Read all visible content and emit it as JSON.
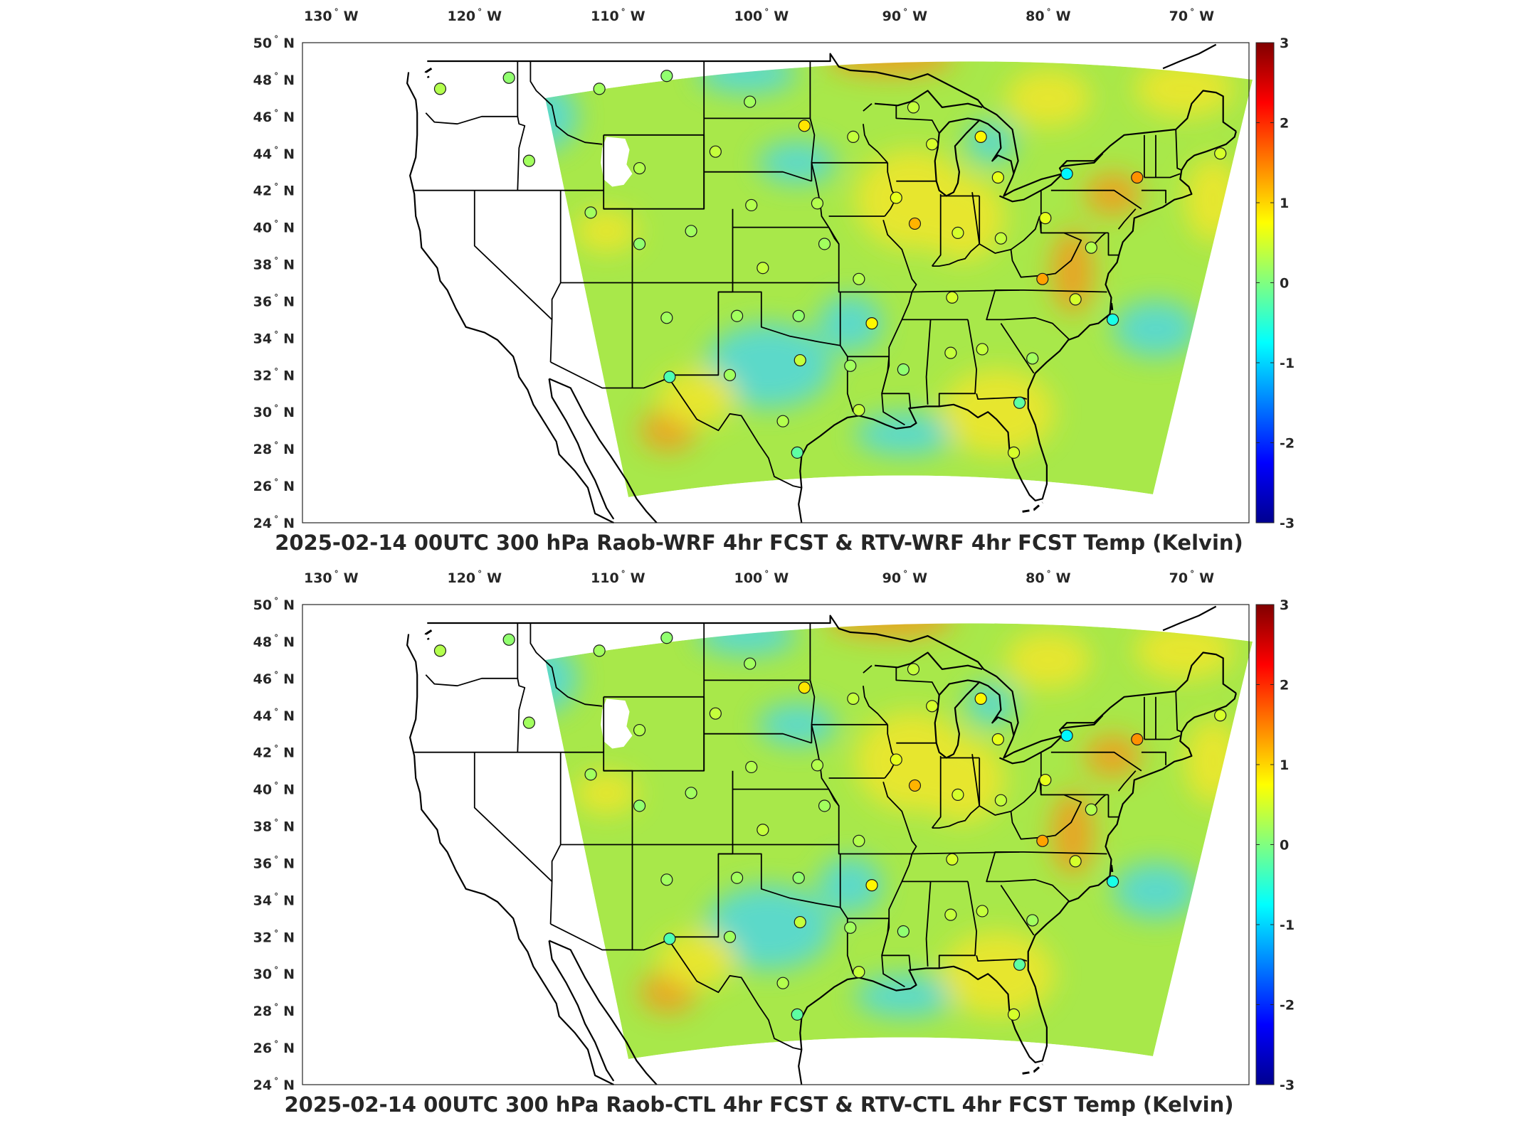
{
  "panels": [
    {
      "id": "top",
      "title": "2025-02-14 00UTC 300 hPa Raob-WRF 4hr FCST & RTV-WRF 4hr FCST Temp (Kelvin)"
    },
    {
      "id": "bottom",
      "title": "2025-02-14 00UTC 300 hPa Raob-CTL 4hr FCST & RTV-CTL 4hr FCST Temp (Kelvin)"
    }
  ],
  "map": {
    "projection": "equirectangular",
    "lon_range": [
      -132,
      -66
    ],
    "lat_range": [
      24,
      50
    ],
    "lon_ticks": [
      {
        "value": -130,
        "num": "130",
        "hemi": "W"
      },
      {
        "value": -120,
        "num": "120",
        "hemi": "W"
      },
      {
        "value": -110,
        "num": "110",
        "hemi": "W"
      },
      {
        "value": -100,
        "num": "100",
        "hemi": "W"
      },
      {
        "value": -90,
        "num": "90",
        "hemi": "W"
      },
      {
        "value": -80,
        "num": "80",
        "hemi": "W"
      },
      {
        "value": -70,
        "num": "70",
        "hemi": "W"
      }
    ],
    "lat_ticks": [
      {
        "value": 24,
        "num": "24",
        "hemi": "N"
      },
      {
        "value": 26,
        "num": "26",
        "hemi": "N"
      },
      {
        "value": 28,
        "num": "28",
        "hemi": "N"
      },
      {
        "value": 30,
        "num": "30",
        "hemi": "N"
      },
      {
        "value": 32,
        "num": "32",
        "hemi": "N"
      },
      {
        "value": 34,
        "num": "34",
        "hemi": "N"
      },
      {
        "value": 36,
        "num": "36",
        "hemi": "N"
      },
      {
        "value": 38,
        "num": "38",
        "hemi": "N"
      },
      {
        "value": 40,
        "num": "40",
        "hemi": "N"
      },
      {
        "value": 42,
        "num": "42",
        "hemi": "N"
      },
      {
        "value": 44,
        "num": "44",
        "hemi": "N"
      },
      {
        "value": 46,
        "num": "46",
        "hemi": "N"
      },
      {
        "value": 48,
        "num": "48",
        "hemi": "N"
      },
      {
        "value": 50,
        "num": "50",
        "hemi": "N"
      }
    ],
    "degree_symbol": "°"
  },
  "colorbar": {
    "min": -3,
    "max": 3,
    "ticks": [
      "-3",
      "-2",
      "-1",
      "0",
      "1",
      "2",
      "3"
    ],
    "colormap": [
      "#00008f",
      "#0000ff",
      "#0080ff",
      "#00ffff",
      "#80ff80",
      "#ffff00",
      "#ff8000",
      "#ff0000",
      "#800000"
    ]
  },
  "colors": {
    "field_base": "#a8e84a",
    "field_warm": "#f2e62a",
    "field_hot": "#f39a1c",
    "field_cool": "#4fd7e0",
    "boundary": "#000000"
  },
  "raob_stations": [
    {
      "lon": -122.4,
      "lat": 47.5,
      "value": 0.3
    },
    {
      "lon": -117.6,
      "lat": 48.1,
      "value": 0.1
    },
    {
      "lon": -111.3,
      "lat": 47.5,
      "value": 0.2
    },
    {
      "lon": -106.6,
      "lat": 48.2,
      "value": 0.1
    },
    {
      "lon": -100.8,
      "lat": 46.8,
      "value": 0.2
    },
    {
      "lon": -97.0,
      "lat": 45.5,
      "value": 0.9
    },
    {
      "lon": -93.6,
      "lat": 44.9,
      "value": 0.4
    },
    {
      "lon": -89.4,
      "lat": 46.5,
      "value": 0.4
    },
    {
      "lon": -88.1,
      "lat": 44.5,
      "value": 0.5
    },
    {
      "lon": -84.7,
      "lat": 44.9,
      "value": 0.8
    },
    {
      "lon": -83.5,
      "lat": 42.7,
      "value": 0.6
    },
    {
      "lon": -78.7,
      "lat": 42.9,
      "value": -0.8
    },
    {
      "lon": -73.8,
      "lat": 42.7,
      "value": 1.4
    },
    {
      "lon": -68.0,
      "lat": 44.0,
      "value": 0.5
    },
    {
      "lon": -116.2,
      "lat": 43.6,
      "value": 0.2
    },
    {
      "lon": -108.5,
      "lat": 43.2,
      "value": 0.3
    },
    {
      "lon": -103.2,
      "lat": 44.1,
      "value": 0.4
    },
    {
      "lon": -100.7,
      "lat": 41.2,
      "value": 0.3
    },
    {
      "lon": -96.1,
      "lat": 41.3,
      "value": 0.3
    },
    {
      "lon": -90.6,
      "lat": 41.6,
      "value": 0.6
    },
    {
      "lon": -89.3,
      "lat": 40.2,
      "value": 1.2
    },
    {
      "lon": -86.3,
      "lat": 39.7,
      "value": 0.5
    },
    {
      "lon": -83.3,
      "lat": 39.4,
      "value": 0.4
    },
    {
      "lon": -80.2,
      "lat": 40.5,
      "value": 0.6
    },
    {
      "lon": -77.0,
      "lat": 38.9,
      "value": 0.3
    },
    {
      "lon": -111.9,
      "lat": 40.8,
      "value": 0.2
    },
    {
      "lon": -108.5,
      "lat": 39.1,
      "value": 0.1
    },
    {
      "lon": -104.9,
      "lat": 39.8,
      "value": 0.2
    },
    {
      "lon": -99.9,
      "lat": 37.8,
      "value": 0.4
    },
    {
      "lon": -95.6,
      "lat": 39.1,
      "value": 0.2
    },
    {
      "lon": -93.2,
      "lat": 37.2,
      "value": 0.3
    },
    {
      "lon": -86.7,
      "lat": 36.2,
      "value": 0.5
    },
    {
      "lon": -80.4,
      "lat": 37.2,
      "value": 1.3
    },
    {
      "lon": -78.1,
      "lat": 36.1,
      "value": 0.5
    },
    {
      "lon": -75.5,
      "lat": 35.0,
      "value": -0.6
    },
    {
      "lon": -106.6,
      "lat": 35.1,
      "value": 0.2
    },
    {
      "lon": -101.7,
      "lat": 35.2,
      "value": 0.2
    },
    {
      "lon": -97.4,
      "lat": 35.2,
      "value": 0.1
    },
    {
      "lon": -92.3,
      "lat": 34.8,
      "value": 0.8
    },
    {
      "lon": -86.8,
      "lat": 33.2,
      "value": 0.4
    },
    {
      "lon": -84.6,
      "lat": 33.4,
      "value": 0.4
    },
    {
      "lon": -81.1,
      "lat": 32.9,
      "value": 0.2
    },
    {
      "lon": -106.4,
      "lat": 31.9,
      "value": -0.3
    },
    {
      "lon": -102.2,
      "lat": 32.0,
      "value": 0.2
    },
    {
      "lon": -97.3,
      "lat": 32.8,
      "value": 0.4
    },
    {
      "lon": -93.8,
      "lat": 32.5,
      "value": 0.2
    },
    {
      "lon": -90.1,
      "lat": 32.3,
      "value": 0.1
    },
    {
      "lon": -98.5,
      "lat": 29.5,
      "value": 0.3
    },
    {
      "lon": -93.2,
      "lat": 30.1,
      "value": 0.4
    },
    {
      "lon": -82.0,
      "lat": 30.5,
      "value": -0.2
    },
    {
      "lon": -97.5,
      "lat": 27.8,
      "value": -0.2
    },
    {
      "lon": -82.4,
      "lat": 27.8,
      "value": 0.5
    }
  ]
}
